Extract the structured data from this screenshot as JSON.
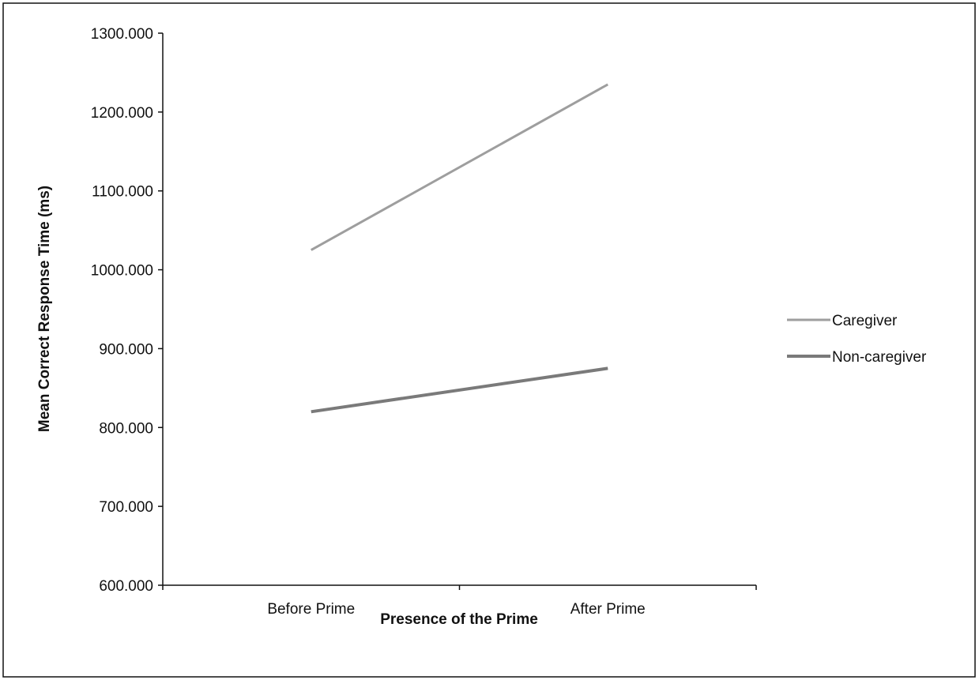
{
  "chart_data": {
    "type": "line",
    "categories": [
      "Before Prime",
      "After Prime"
    ],
    "series": [
      {
        "name": "Caregiver",
        "values": [
          1025,
          1235
        ],
        "color": "#9e9e9e"
      },
      {
        "name": "Non-caregiver",
        "values": [
          820,
          875
        ],
        "color": "#7a7a7a"
      }
    ],
    "xlabel": "Presence of the Prime",
    "ylabel": "Mean Correct Response Time (ms)",
    "ylim": [
      600,
      1300
    ],
    "yticks": [
      600,
      700,
      800,
      900,
      1000,
      1100,
      1200,
      1300
    ],
    "ytick_labels": [
      "600.000",
      "700.000",
      "800.000",
      "900.000",
      "1000.000",
      "1100.000",
      "1200.000",
      "1300.000"
    ],
    "grid": false,
    "legend_position": "right"
  }
}
